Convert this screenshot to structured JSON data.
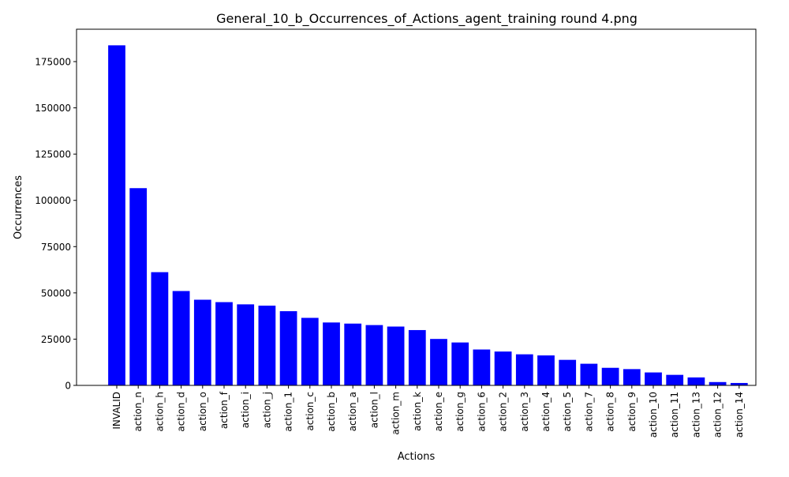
{
  "chart_data": {
    "type": "bar",
    "title": "General_10_b_Occurrences_of_Actions_agent_training round 4.png",
    "xlabel": "Actions",
    "ylabel": "Occurrences",
    "ylim": [
      0,
      192500
    ],
    "yticks": [
      0,
      25000,
      50000,
      75000,
      100000,
      125000,
      150000,
      175000
    ],
    "grid": false,
    "legend": "none",
    "bar_color": "#0000ff",
    "categories": [
      "INVALID",
      "action_n",
      "action_h",
      "action_d",
      "action_o",
      "action_f",
      "action_i",
      "action_j",
      "action_1",
      "action_c",
      "action_b",
      "action_a",
      "action_l",
      "action_m",
      "action_k",
      "action_e",
      "action_g",
      "action_6",
      "action_2",
      "action_3",
      "action_4",
      "action_5",
      "action_7",
      "action_8",
      "action_9",
      "action_10",
      "action_11",
      "action_13",
      "action_12",
      "action_14"
    ],
    "values": [
      183800,
      106600,
      61200,
      51000,
      46300,
      45000,
      43800,
      43100,
      40100,
      36500,
      34000,
      33400,
      32600,
      31800,
      29900,
      25100,
      23200,
      19400,
      18300,
      16800,
      16200,
      13800,
      11700,
      9500,
      8800,
      7000,
      5700,
      4300,
      1800,
      1300
    ]
  }
}
